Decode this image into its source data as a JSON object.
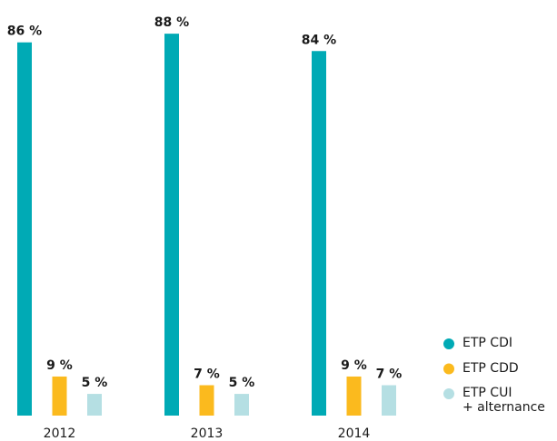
{
  "chart_data": {
    "type": "bar",
    "categories": [
      "2012",
      "2013",
      "2014"
    ],
    "series": [
      {
        "name": "ETP CDI",
        "color": "#00aab5",
        "values": [
          86,
          88,
          84
        ],
        "value_labels": [
          "86 %",
          "88 %",
          "84 %"
        ]
      },
      {
        "name": "ETP CDD",
        "color": "#fbba1e",
        "values": [
          9,
          7,
          9
        ],
        "value_labels": [
          "9 %",
          "7 %",
          "9 %"
        ]
      },
      {
        "name": "ETP CUI\n+ alternance",
        "color": "#b5dfe3",
        "values": [
          5,
          5,
          7
        ],
        "value_labels": [
          "5 %",
          "5 %",
          "7 %"
        ]
      }
    ],
    "ylim": [
      0,
      92
    ]
  }
}
